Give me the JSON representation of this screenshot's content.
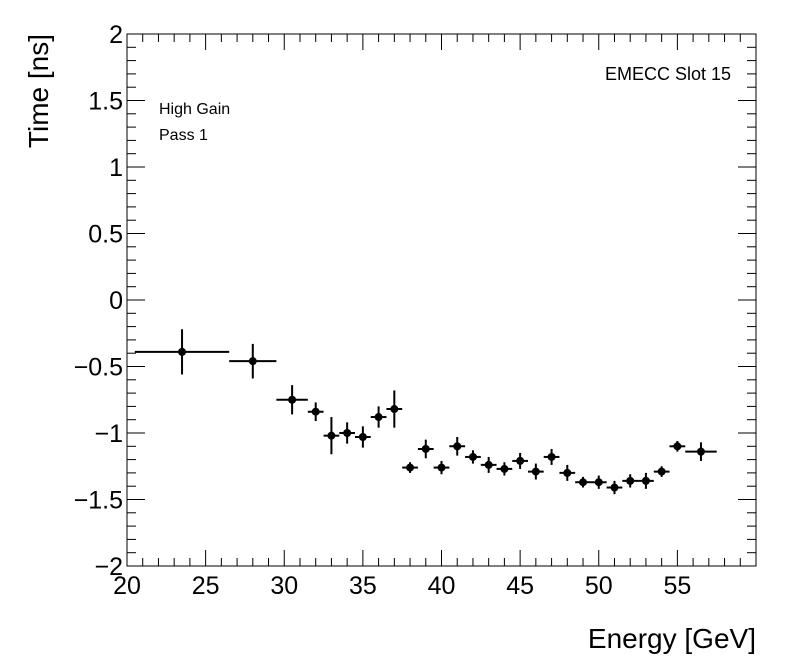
{
  "chart_data": {
    "type": "scatter",
    "title": "",
    "xlabel": "Energy [GeV]",
    "ylabel": "Time [ns]",
    "xlim": [
      20,
      60
    ],
    "ylim": [
      -2,
      2
    ],
    "x_major_ticks": [
      20,
      25,
      30,
      35,
      40,
      45,
      50,
      55
    ],
    "y_major_ticks": [
      -2,
      -1.5,
      -1,
      -0.5,
      0,
      0.5,
      1,
      1.5,
      2
    ],
    "x_tick_labels": [
      "20",
      "25",
      "30",
      "35",
      "40",
      "45",
      "50",
      "55"
    ],
    "y_tick_labels": [
      "−2",
      "−1.5",
      "−1",
      "−0.5",
      "0",
      "0.5",
      "1",
      "1.5",
      "2"
    ],
    "annotations": {
      "gain": "High Gain",
      "pass": "Pass 1",
      "slot": "EMECC Slot 15"
    },
    "series": [
      {
        "name": "data",
        "points": [
          {
            "x": 23.5,
            "xlo": 20.5,
            "xhi": 26.5,
            "y": -0.39,
            "yerr": 0.17
          },
          {
            "x": 28.0,
            "xlo": 26.5,
            "xhi": 29.5,
            "y": -0.46,
            "yerr": 0.13
          },
          {
            "x": 30.5,
            "xlo": 29.5,
            "xhi": 31.5,
            "y": -0.75,
            "yerr": 0.11
          },
          {
            "x": 32.0,
            "xlo": 31.5,
            "xhi": 32.5,
            "y": -0.84,
            "yerr": 0.07
          },
          {
            "x": 33.0,
            "xlo": 32.5,
            "xhi": 33.5,
            "y": -1.02,
            "yerr": 0.14
          },
          {
            "x": 34.0,
            "xlo": 33.5,
            "xhi": 34.5,
            "y": -1.0,
            "yerr": 0.08
          },
          {
            "x": 35.0,
            "xlo": 34.5,
            "xhi": 35.5,
            "y": -1.03,
            "yerr": 0.08
          },
          {
            "x": 36.0,
            "xlo": 35.5,
            "xhi": 36.5,
            "y": -0.88,
            "yerr": 0.08
          },
          {
            "x": 37.0,
            "xlo": 36.5,
            "xhi": 37.5,
            "y": -0.82,
            "yerr": 0.14
          },
          {
            "x": 38.0,
            "xlo": 37.5,
            "xhi": 38.5,
            "y": -1.26,
            "yerr": 0.04
          },
          {
            "x": 39.0,
            "xlo": 38.5,
            "xhi": 39.5,
            "y": -1.12,
            "yerr": 0.07
          },
          {
            "x": 40.0,
            "xlo": 39.5,
            "xhi": 40.5,
            "y": -1.26,
            "yerr": 0.05
          },
          {
            "x": 41.0,
            "xlo": 40.5,
            "xhi": 41.5,
            "y": -1.1,
            "yerr": 0.07
          },
          {
            "x": 42.0,
            "xlo": 41.5,
            "xhi": 42.5,
            "y": -1.18,
            "yerr": 0.05
          },
          {
            "x": 43.0,
            "xlo": 42.5,
            "xhi": 43.5,
            "y": -1.24,
            "yerr": 0.06
          },
          {
            "x": 44.0,
            "xlo": 43.5,
            "xhi": 44.5,
            "y": -1.27,
            "yerr": 0.05
          },
          {
            "x": 45.0,
            "xlo": 44.5,
            "xhi": 45.5,
            "y": -1.21,
            "yerr": 0.06
          },
          {
            "x": 46.0,
            "xlo": 45.5,
            "xhi": 46.5,
            "y": -1.29,
            "yerr": 0.06
          },
          {
            "x": 47.0,
            "xlo": 46.5,
            "xhi": 47.5,
            "y": -1.18,
            "yerr": 0.06
          },
          {
            "x": 48.0,
            "xlo": 47.5,
            "xhi": 48.5,
            "y": -1.3,
            "yerr": 0.06
          },
          {
            "x": 49.0,
            "xlo": 48.5,
            "xhi": 49.5,
            "y": -1.37,
            "yerr": 0.04
          },
          {
            "x": 50.0,
            "xlo": 49.5,
            "xhi": 50.5,
            "y": -1.37,
            "yerr": 0.05
          },
          {
            "x": 51.0,
            "xlo": 50.5,
            "xhi": 51.5,
            "y": -1.41,
            "yerr": 0.05
          },
          {
            "x": 52.0,
            "xlo": 51.5,
            "xhi": 52.5,
            "y": -1.36,
            "yerr": 0.05
          },
          {
            "x": 53.0,
            "xlo": 52.5,
            "xhi": 53.5,
            "y": -1.36,
            "yerr": 0.06
          },
          {
            "x": 54.0,
            "xlo": 53.5,
            "xhi": 54.5,
            "y": -1.29,
            "yerr": 0.04
          },
          {
            "x": 55.0,
            "xlo": 54.5,
            "xhi": 55.5,
            "y": -1.1,
            "yerr": 0.04
          },
          {
            "x": 56.5,
            "xlo": 55.5,
            "xhi": 57.5,
            "y": -1.14,
            "yerr": 0.07
          }
        ]
      }
    ]
  }
}
